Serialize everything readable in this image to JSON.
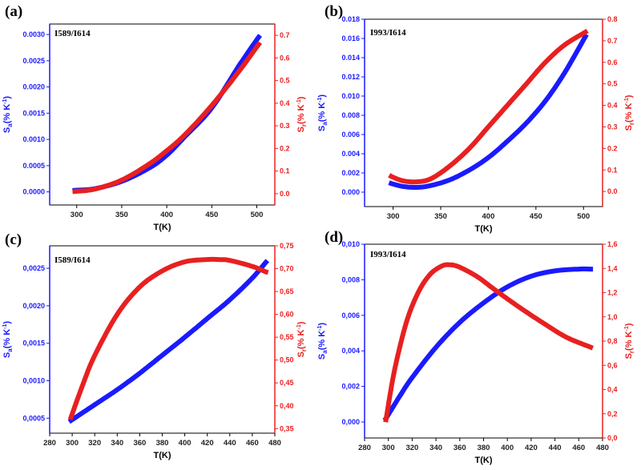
{
  "chart_data": [
    {
      "type": "line",
      "panel_label": "(a)",
      "annotation": "I589/I614",
      "xlabel": "T(K)",
      "ylabel_left": "Sa(% K-1)",
      "ylabel_right": "Sr(% K-1)",
      "xlim": [
        270,
        520
      ],
      "ylim_left": [
        -0.00025,
        0.0032
      ],
      "ylim_right": [
        -0.05,
        0.75
      ],
      "xticks": [
        "300",
        "350",
        "400",
        "450",
        "500"
      ],
      "xtick_values": [
        300,
        350,
        400,
        450,
        500
      ],
      "yticks_left": [
        "0.0000",
        "0.0005",
        "0.0010",
        "0.0015",
        "0.0020",
        "0.0025",
        "0.0030"
      ],
      "ytick_values_left": [
        0,
        0.0005,
        0.001,
        0.0015,
        0.002,
        0.0025,
        0.003
      ],
      "yticks_right": [
        "0.0",
        "0.1",
        "0.2",
        "0.3",
        "0.4",
        "0.5",
        "0.6",
        "0.7"
      ],
      "ytick_values_right": [
        0,
        0.1,
        0.2,
        0.3,
        0.4,
        0.5,
        0.6,
        0.7
      ],
      "series": [
        {
          "name": "Sa",
          "axis": "left",
          "color": "#1a1aff",
          "x": [
            298,
            320,
            350,
            380,
            400,
            420,
            450,
            480,
            502
          ],
          "values": [
            3e-05,
            6e-05,
            0.0002,
            0.00045,
            0.0007,
            0.00105,
            0.0016,
            0.0024,
            0.00295
          ]
        },
        {
          "name": "Sr",
          "axis": "right",
          "color": "#e82020",
          "x": [
            298,
            320,
            350,
            380,
            400,
            420,
            450,
            480,
            502
          ],
          "values": [
            0.01,
            0.02,
            0.06,
            0.13,
            0.19,
            0.26,
            0.39,
            0.54,
            0.66
          ]
        }
      ]
    },
    {
      "type": "line",
      "panel_label": "(b)",
      "annotation": "I993/I614",
      "xlabel": "T(K)",
      "ylabel_left": "Sa(% K-1)",
      "ylabel_right": "Sr(% K-1)",
      "xlim": [
        270,
        520
      ],
      "ylim_left": [
        -0.0015,
        0.018
      ],
      "ylim_right": [
        -0.07,
        0.8
      ],
      "xticks": [
        "300",
        "350",
        "400",
        "450",
        "500"
      ],
      "xtick_values": [
        300,
        350,
        400,
        450,
        500
      ],
      "yticks_left": [
        "0.000",
        "0.002",
        "0.004",
        "0.006",
        "0.008",
        "0.010",
        "0.012",
        "0.014",
        "0.016",
        "0.018"
      ],
      "ytick_values_left": [
        0,
        0.002,
        0.004,
        0.006,
        0.008,
        0.01,
        0.012,
        0.014,
        0.016,
        0.018
      ],
      "yticks_right": [
        "0.0",
        "0.1",
        "0.2",
        "0.3",
        "0.4",
        "0.5",
        "0.6",
        "0.7",
        "0.8"
      ],
      "ytick_values_right": [
        0,
        0.1,
        0.2,
        0.3,
        0.4,
        0.5,
        0.6,
        0.7,
        0.8
      ],
      "series": [
        {
          "name": "Sa",
          "axis": "left",
          "color": "#1a1aff",
          "x": [
            298,
            310,
            325,
            340,
            360,
            380,
            400,
            420,
            440,
            460,
            480,
            502
          ],
          "values": [
            0.0009,
            0.0006,
            0.0005,
            0.0007,
            0.0013,
            0.0023,
            0.0036,
            0.0053,
            0.0072,
            0.0095,
            0.0124,
            0.0162
          ]
        },
        {
          "name": "Sr",
          "axis": "right",
          "color": "#e82020",
          "x": [
            298,
            310,
            325,
            340,
            360,
            380,
            400,
            420,
            440,
            460,
            480,
            502
          ],
          "values": [
            0.07,
            0.05,
            0.045,
            0.06,
            0.12,
            0.2,
            0.3,
            0.4,
            0.5,
            0.6,
            0.68,
            0.74
          ]
        }
      ]
    },
    {
      "type": "line",
      "panel_label": "(c)",
      "annotation": "I589/I614",
      "xlabel": "T(K)",
      "ylabel_left": "Sa(% K-1)",
      "ylabel_right": "Sr(% K-1)",
      "xlim": [
        280,
        480
      ],
      "ylim_left": [
        0.0003,
        0.0028
      ],
      "ylim_right": [
        0.34,
        0.75
      ],
      "xticks": [
        "280",
        "300",
        "320",
        "340",
        "360",
        "380",
        "400",
        "420",
        "440",
        "460",
        "480"
      ],
      "xtick_values": [
        280,
        300,
        320,
        340,
        360,
        380,
        400,
        420,
        440,
        460,
        480
      ],
      "yticks_left": [
        "0,0005",
        "0,0010",
        "0,0015",
        "0,0020",
        "0,0025"
      ],
      "ytick_values_left": [
        0.0005,
        0.001,
        0.0015,
        0.002,
        0.0025
      ],
      "yticks_right": [
        "0,35",
        "0,40",
        "0,45",
        "0,50",
        "0,55",
        "0,60",
        "0,65",
        "0,70",
        "0,75"
      ],
      "ytick_values_right": [
        0.35,
        0.4,
        0.45,
        0.5,
        0.55,
        0.6,
        0.65,
        0.7,
        0.75
      ],
      "series": [
        {
          "name": "Sa",
          "axis": "left",
          "color": "#1a1aff",
          "x": [
            299,
            320,
            340,
            360,
            380,
            400,
            420,
            440,
            460,
            472
          ],
          "values": [
            0.00047,
            0.00068,
            0.00088,
            0.0011,
            0.00134,
            0.00158,
            0.00183,
            0.00208,
            0.00237,
            0.00258
          ]
        },
        {
          "name": "Sr",
          "axis": "right",
          "color": "#e82020",
          "x": [
            299,
            310,
            320,
            340,
            360,
            380,
            400,
            420,
            430,
            440,
            460,
            472
          ],
          "values": [
            0.375,
            0.45,
            0.51,
            0.6,
            0.66,
            0.695,
            0.715,
            0.72,
            0.72,
            0.718,
            0.705,
            0.693
          ]
        }
      ]
    },
    {
      "type": "line",
      "panel_label": "(d)",
      "annotation": "I993/I614",
      "xlabel": "T(K)",
      "ylabel_left": "Sa(% K-1)",
      "ylabel_right": "Sr(% K-1)",
      "xlim": [
        280,
        480
      ],
      "ylim_left": [
        -0.0009,
        0.01
      ],
      "ylim_right": [
        0.0,
        1.6
      ],
      "xticks": [
        "280",
        "300",
        "320",
        "340",
        "360",
        "380",
        "400",
        "420",
        "440",
        "460",
        "480"
      ],
      "xtick_values": [
        280,
        300,
        320,
        340,
        360,
        380,
        400,
        420,
        440,
        460,
        480
      ],
      "yticks_left": [
        "0,000",
        "0,002",
        "0,004",
        "0,006",
        "0,008",
        "0,010"
      ],
      "ytick_values_left": [
        0,
        0.002,
        0.004,
        0.006,
        0.008,
        0.01
      ],
      "yticks_right": [
        "0,0",
        "0,2",
        "0,4",
        "0,6",
        "0,8",
        "1,0",
        "1,2",
        "1,4",
        "1,6"
      ],
      "ytick_values_right": [
        0,
        0.2,
        0.4,
        0.6,
        0.8,
        1.0,
        1.2,
        1.4,
        1.6
      ],
      "series": [
        {
          "name": "Sa",
          "axis": "left",
          "color": "#1a1aff",
          "x": [
            298,
            310,
            320,
            340,
            360,
            380,
            400,
            420,
            440,
            460,
            470
          ],
          "values": [
            0.0002,
            0.0015,
            0.0025,
            0.0042,
            0.0056,
            0.0067,
            0.0076,
            0.0082,
            0.0085,
            0.0086,
            0.0086
          ]
        },
        {
          "name": "Sr",
          "axis": "right",
          "color": "#e82020",
          "x": [
            298,
            305,
            315,
            325,
            335,
            345,
            352,
            360,
            375,
            390,
            410,
            430,
            450,
            470
          ],
          "values": [
            0.15,
            0.55,
            0.95,
            1.2,
            1.35,
            1.42,
            1.43,
            1.41,
            1.33,
            1.22,
            1.08,
            0.95,
            0.83,
            0.75
          ]
        }
      ]
    }
  ]
}
